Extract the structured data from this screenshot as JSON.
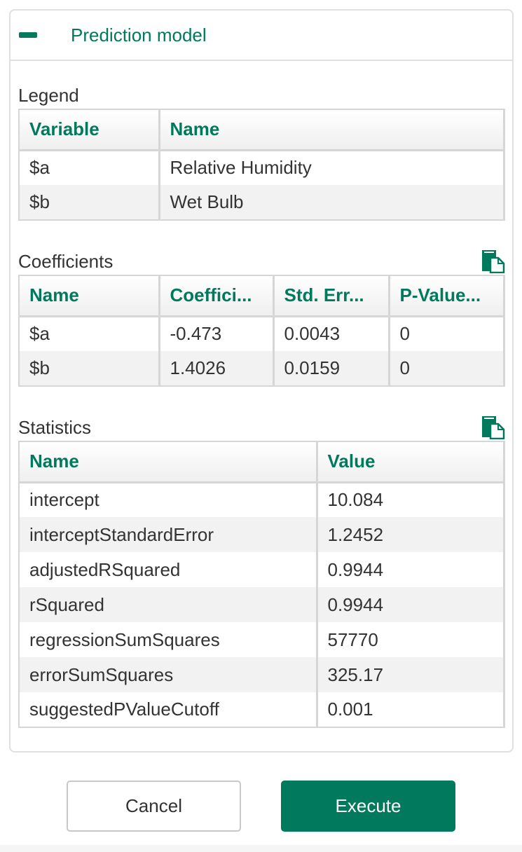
{
  "panel": {
    "title": "Prediction model",
    "collapse_icon": "minus-icon"
  },
  "legend": {
    "label": "Legend",
    "headers": [
      "Variable",
      "Name"
    ],
    "rows": [
      [
        "$a",
        "Relative Humidity"
      ],
      [
        "$b",
        "Wet Bulb"
      ]
    ]
  },
  "coefficients": {
    "label": "Coefficients",
    "copy_icon": "copy-icon",
    "headers": [
      "Name",
      "Coeffici...",
      "Std. Err...",
      "P-Value..."
    ],
    "rows": [
      [
        "$a",
        "-0.473",
        "0.0043",
        "0"
      ],
      [
        "$b",
        "1.4026",
        "0.0159",
        "0"
      ]
    ]
  },
  "statistics": {
    "label": "Statistics",
    "copy_icon": "copy-icon",
    "headers": [
      "Name",
      "Value"
    ],
    "rows": [
      [
        "intercept",
        "10.084"
      ],
      [
        "interceptStandardError",
        "1.2452"
      ],
      [
        "adjustedRSquared",
        "0.9944"
      ],
      [
        "rSquared",
        "0.9944"
      ],
      [
        "regressionSumSquares",
        "57770"
      ],
      [
        "errorSumSquares",
        "325.17"
      ],
      [
        "suggestedPValueCutoff",
        "0.001"
      ]
    ]
  },
  "buttons": {
    "cancel": "Cancel",
    "execute": "Execute"
  },
  "colors": {
    "accent": "#00795c"
  }
}
